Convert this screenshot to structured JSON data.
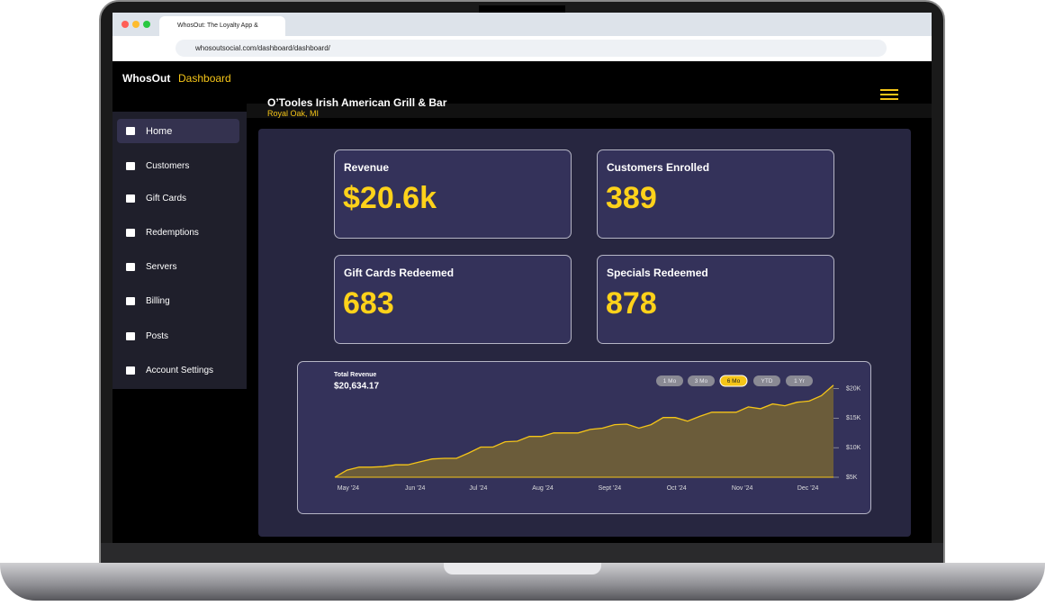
{
  "browser": {
    "tab_title": "WhosOut: The Loyalty App &",
    "url": "whosoutsocial.com/dashboard/dashboard/"
  },
  "header": {
    "brand": "WhosOut",
    "section": "Dashboard",
    "venue": "O’Tooles Irish American Grill & Bar",
    "location": "Royal Oak, MI"
  },
  "nav": [
    "Home",
    "Customers",
    "Gift Cards",
    "Redemptions",
    "Servers",
    "Billing",
    "Posts",
    "Account Settings"
  ],
  "stats": [
    {
      "label": "Revenue",
      "value": "$20.6k"
    },
    {
      "label": "Customers Enrolled",
      "value": 389
    },
    {
      "label": "Gift Cards Redeemed",
      "value": 683
    },
    {
      "label": "Specials Redeemed",
      "value": 878
    }
  ],
  "revenue_chart": {
    "type": "area",
    "title": "Total Revenue",
    "total": "$20,634.17",
    "ranges": [
      "1 Mo",
      "3 Mo",
      "6 Mo",
      "YTD",
      "1 Yr"
    ],
    "active_range": 2,
    "values": [
      5000,
      6200,
      6700,
      6700,
      6800,
      7100,
      7100,
      7600,
      8100,
      8200,
      8200,
      9100,
      10100,
      10100,
      11000,
      11100,
      11900,
      11900,
      12500,
      12500,
      12500,
      13100,
      13300,
      13900,
      14000,
      13300,
      13900,
      15100,
      15100,
      14500,
      15300,
      16000,
      16000,
      16000,
      16900,
      16600,
      17400,
      17100,
      17700,
      17900,
      18800,
      20600
    ],
    "color": "#f5c518",
    "fill": "#6b5c3a",
    "xlim": [
      0,
      41
    ],
    "xticks": [
      {
        "value": 1.1,
        "label": "May '24"
      },
      {
        "value": 6.6,
        "label": "Jun '24"
      },
      {
        "value": 11.8,
        "label": "Jul '24"
      },
      {
        "value": 17.1,
        "label": "Aug '24"
      },
      {
        "value": 22.6,
        "label": "Sept '24"
      },
      {
        "value": 28.1,
        "label": "Oct '24"
      },
      {
        "value": 33.5,
        "label": "Nov '24"
      },
      {
        "value": 38.9,
        "label": "Dec '24"
      }
    ],
    "ylim": [
      5000,
      20700
    ],
    "yticks": [
      {
        "value": 5000,
        "label": "$5K"
      },
      {
        "value": 10000,
        "label": "$10K"
      },
      {
        "value": 15000,
        "label": "$15K"
      },
      {
        "value": 20000,
        "label": "$20K"
      }
    ]
  }
}
